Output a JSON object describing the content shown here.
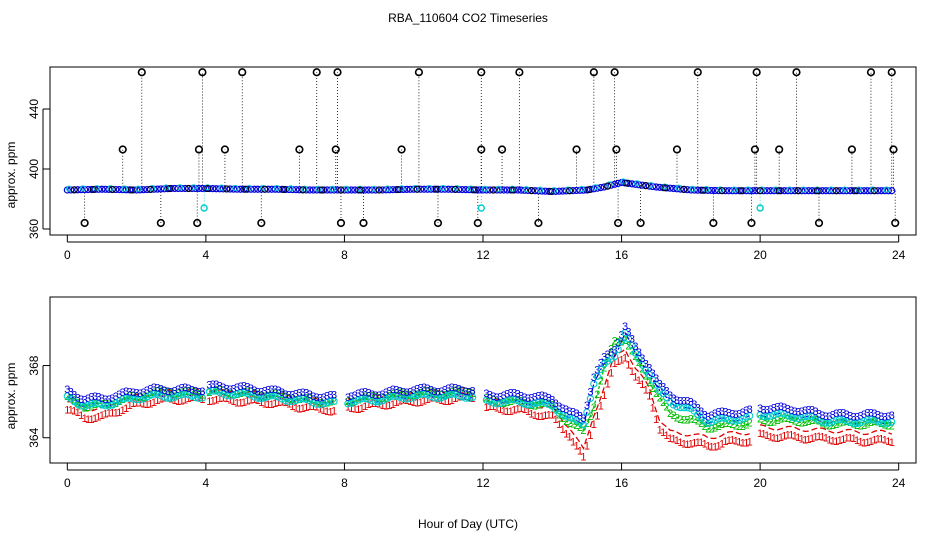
{
  "title": "RBA_110604  CO2 Timeseries",
  "xlabel": "Hour of Day (UTC)",
  "colors": {
    "black": "#000000",
    "red": "#e00000",
    "green": "#00bb00",
    "blue": "#0000dd",
    "cyan": "#00cccc"
  },
  "chart_data": [
    {
      "type": "scatter",
      "panel": "top",
      "title": "RBA_110604  CO2 Timeseries",
      "xlabel": "",
      "ylabel": "approx. ppm",
      "xlim": [
        -0.5,
        24.5
      ],
      "ylim": [
        356,
        468
      ],
      "xticks": [
        0,
        4,
        8,
        12,
        16,
        20,
        24
      ],
      "yticks": [
        360,
        400,
        440
      ],
      "baseline": [
        [
          0,
          386
        ],
        [
          1,
          386.5
        ],
        [
          2,
          386
        ],
        [
          3,
          387
        ],
        [
          4,
          387
        ],
        [
          5,
          386.5
        ],
        [
          6,
          386.5
        ],
        [
          7,
          386
        ],
        [
          8,
          386
        ],
        [
          9,
          386
        ],
        [
          10,
          386.5
        ],
        [
          11,
          386.5
        ],
        [
          12,
          386
        ],
        [
          13,
          386
        ],
        [
          14,
          385
        ],
        [
          15,
          386
        ],
        [
          15.5,
          388
        ],
        [
          16,
          391
        ],
        [
          17,
          388
        ],
        [
          18,
          386
        ],
        [
          19,
          385.5
        ],
        [
          20,
          385.5
        ],
        [
          21,
          385.5
        ],
        [
          22,
          385.5
        ],
        [
          23,
          385.5
        ],
        [
          23.8,
          385.5
        ]
      ],
      "spikes_high": [
        2.15,
        3.9,
        5.05,
        7.2,
        7.8,
        10.15,
        11.95,
        13.05,
        15.2,
        15.8,
        18.2,
        19.9,
        21.05,
        23.2,
        23.8
      ],
      "spikes_mid": [
        1.6,
        3.8,
        4.55,
        6.7,
        7.75,
        9.65,
        11.95,
        12.55,
        14.7,
        15.85,
        17.6,
        19.85,
        20.55,
        22.65,
        23.85
      ],
      "spikes_low": [
        0.5,
        2.7,
        3.75,
        5.6,
        7.9,
        8.55,
        10.7,
        11.85,
        13.6,
        15.9,
        16.55,
        18.65,
        19.75,
        21.7,
        23.9
      ],
      "cyan_points": [
        [
          3.95,
          374
        ],
        [
          11.95,
          374
        ],
        [
          20.0,
          374
        ]
      ],
      "series": [
        {
          "name": "",
          "marker": "o",
          "color": "#000000"
        },
        {
          "name": "",
          "marker": "o",
          "color": "#0000dd"
        },
        {
          "name": "",
          "marker": "o",
          "color": "#00cccc"
        }
      ]
    },
    {
      "type": "line",
      "panel": "bottom",
      "xlabel": "Hour of Day (UTC)",
      "ylabel": "approx. ppm",
      "xlim": [
        -0.5,
        24.5
      ],
      "ylim": [
        362.6,
        371.8
      ],
      "xticks": [
        0,
        4,
        8,
        12,
        16,
        20,
        24
      ],
      "xtick_labels": [
        "0",
        "4",
        "8",
        "12",
        "16",
        "20",
        "24"
      ],
      "yticks": [
        364,
        368
      ],
      "gaps": [
        [
          3.95,
          4.05
        ],
        [
          7.75,
          8.05
        ],
        [
          11.75,
          12.05
        ],
        [
          19.75,
          19.95
        ]
      ],
      "series": [
        {
          "name": "",
          "marker": "1",
          "color": "#e00000",
          "points": [
            [
              0,
              366.0
            ],
            [
              0.5,
              365.6
            ],
            [
              1,
              365.6
            ],
            [
              1.5,
              366.0
            ],
            [
              2,
              366.3
            ],
            [
              2.5,
              366.5
            ],
            [
              3,
              366.6
            ],
            [
              3.5,
              366.6
            ],
            [
              3.9,
              366.6
            ],
            [
              4.1,
              366.6
            ],
            [
              5,
              366.5
            ],
            [
              6,
              366.4
            ],
            [
              7,
              366.1
            ],
            [
              7.7,
              366.0
            ],
            [
              8.1,
              366.1
            ],
            [
              9,
              366.3
            ],
            [
              10,
              366.5
            ],
            [
              11,
              366.6
            ],
            [
              11.7,
              366.7
            ],
            [
              12.1,
              366.1
            ],
            [
              13,
              366.0
            ],
            [
              14,
              365.6
            ],
            [
              14.5,
              364.6
            ],
            [
              14.9,
              363.3
            ],
            [
              15.2,
              365.3
            ],
            [
              15.5,
              366.8
            ],
            [
              15.8,
              368.5
            ],
            [
              16.1,
              369.0
            ],
            [
              16.4,
              367.8
            ],
            [
              16.8,
              366.8
            ],
            [
              17.1,
              365.0
            ],
            [
              17.4,
              364.3
            ],
            [
              18,
              364.2
            ],
            [
              18.5,
              364.0
            ],
            [
              19,
              364.2
            ],
            [
              19.7,
              364.3
            ],
            [
              20.0,
              364.6
            ],
            [
              21,
              364.5
            ],
            [
              22,
              364.4
            ],
            [
              23,
              364.3
            ],
            [
              23.8,
              364.3
            ]
          ]
        },
        {
          "name": "",
          "marker": "2",
          "color": "#00bb00",
          "points": [
            [
              0,
              366.2
            ],
            [
              0.5,
              365.8
            ],
            [
              1,
              365.8
            ],
            [
              1.5,
              366.1
            ],
            [
              2,
              366.3
            ],
            [
              2.5,
              366.5
            ],
            [
              3,
              366.6
            ],
            [
              3.5,
              366.5
            ],
            [
              3.9,
              366.5
            ],
            [
              4.1,
              366.6
            ],
            [
              5,
              366.5
            ],
            [
              6,
              366.4
            ],
            [
              7,
              366.1
            ],
            [
              7.7,
              366.0
            ],
            [
              8.1,
              366.1
            ],
            [
              9,
              366.3
            ],
            [
              10,
              366.5
            ],
            [
              11,
              366.5
            ],
            [
              11.7,
              366.6
            ],
            [
              12.1,
              366.1
            ],
            [
              13,
              366.0
            ],
            [
              14,
              365.8
            ],
            [
              14.5,
              364.8
            ],
            [
              14.9,
              364.4
            ],
            [
              15.2,
              365.8
            ],
            [
              15.5,
              367.8
            ],
            [
              15.8,
              369.4
            ],
            [
              16.1,
              369.5
            ],
            [
              16.4,
              368.4
            ],
            [
              16.8,
              367.2
            ],
            [
              17.1,
              366.2
            ],
            [
              17.4,
              365.3
            ],
            [
              18,
              365.0
            ],
            [
              18.5,
              364.6
            ],
            [
              19,
              364.7
            ],
            [
              19.7,
              364.8
            ],
            [
              20.0,
              365.0
            ],
            [
              21,
              365.0
            ],
            [
              22,
              364.8
            ],
            [
              23,
              364.8
            ],
            [
              23.8,
              364.8
            ]
          ]
        },
        {
          "name": "",
          "marker": "3",
          "color": "#0000dd",
          "points": [
            [
              0,
              366.2
            ],
            [
              0.5,
              365.8
            ],
            [
              1,
              365.8
            ],
            [
              1.5,
              366.0
            ],
            [
              2,
              366.2
            ],
            [
              2.5,
              366.3
            ],
            [
              3,
              366.3
            ],
            [
              3.5,
              366.3
            ],
            [
              3.9,
              366.3
            ],
            [
              4.1,
              366.5
            ],
            [
              5,
              366.4
            ],
            [
              6,
              366.2
            ],
            [
              7,
              366.0
            ],
            [
              7.7,
              365.9
            ],
            [
              8.1,
              366.0
            ],
            [
              9,
              366.1
            ],
            [
              10,
              366.3
            ],
            [
              11,
              366.3
            ],
            [
              11.7,
              366.3
            ],
            [
              12.1,
              366.0
            ],
            [
              13,
              366.0
            ],
            [
              14,
              365.8
            ],
            [
              14.5,
              365.0
            ],
            [
              14.9,
              364.8
            ],
            [
              15.2,
              367.0
            ],
            [
              15.5,
              368.0
            ],
            [
              15.8,
              368.6
            ],
            [
              16.1,
              369.8
            ],
            [
              16.4,
              368.6
            ],
            [
              16.8,
              367.6
            ],
            [
              17.1,
              366.5
            ],
            [
              17.4,
              366.0
            ],
            [
              18,
              365.5
            ],
            [
              18.5,
              364.9
            ],
            [
              19,
              365.0
            ],
            [
              19.7,
              365.1
            ],
            [
              20.0,
              365.3
            ],
            [
              21,
              365.2
            ],
            [
              22,
              364.9
            ],
            [
              23,
              364.9
            ],
            [
              23.8,
              364.9
            ]
          ]
        },
        {
          "name": "",
          "marker": "o",
          "color": "#00cccc",
          "same_as_series": 2
        }
      ]
    }
  ]
}
